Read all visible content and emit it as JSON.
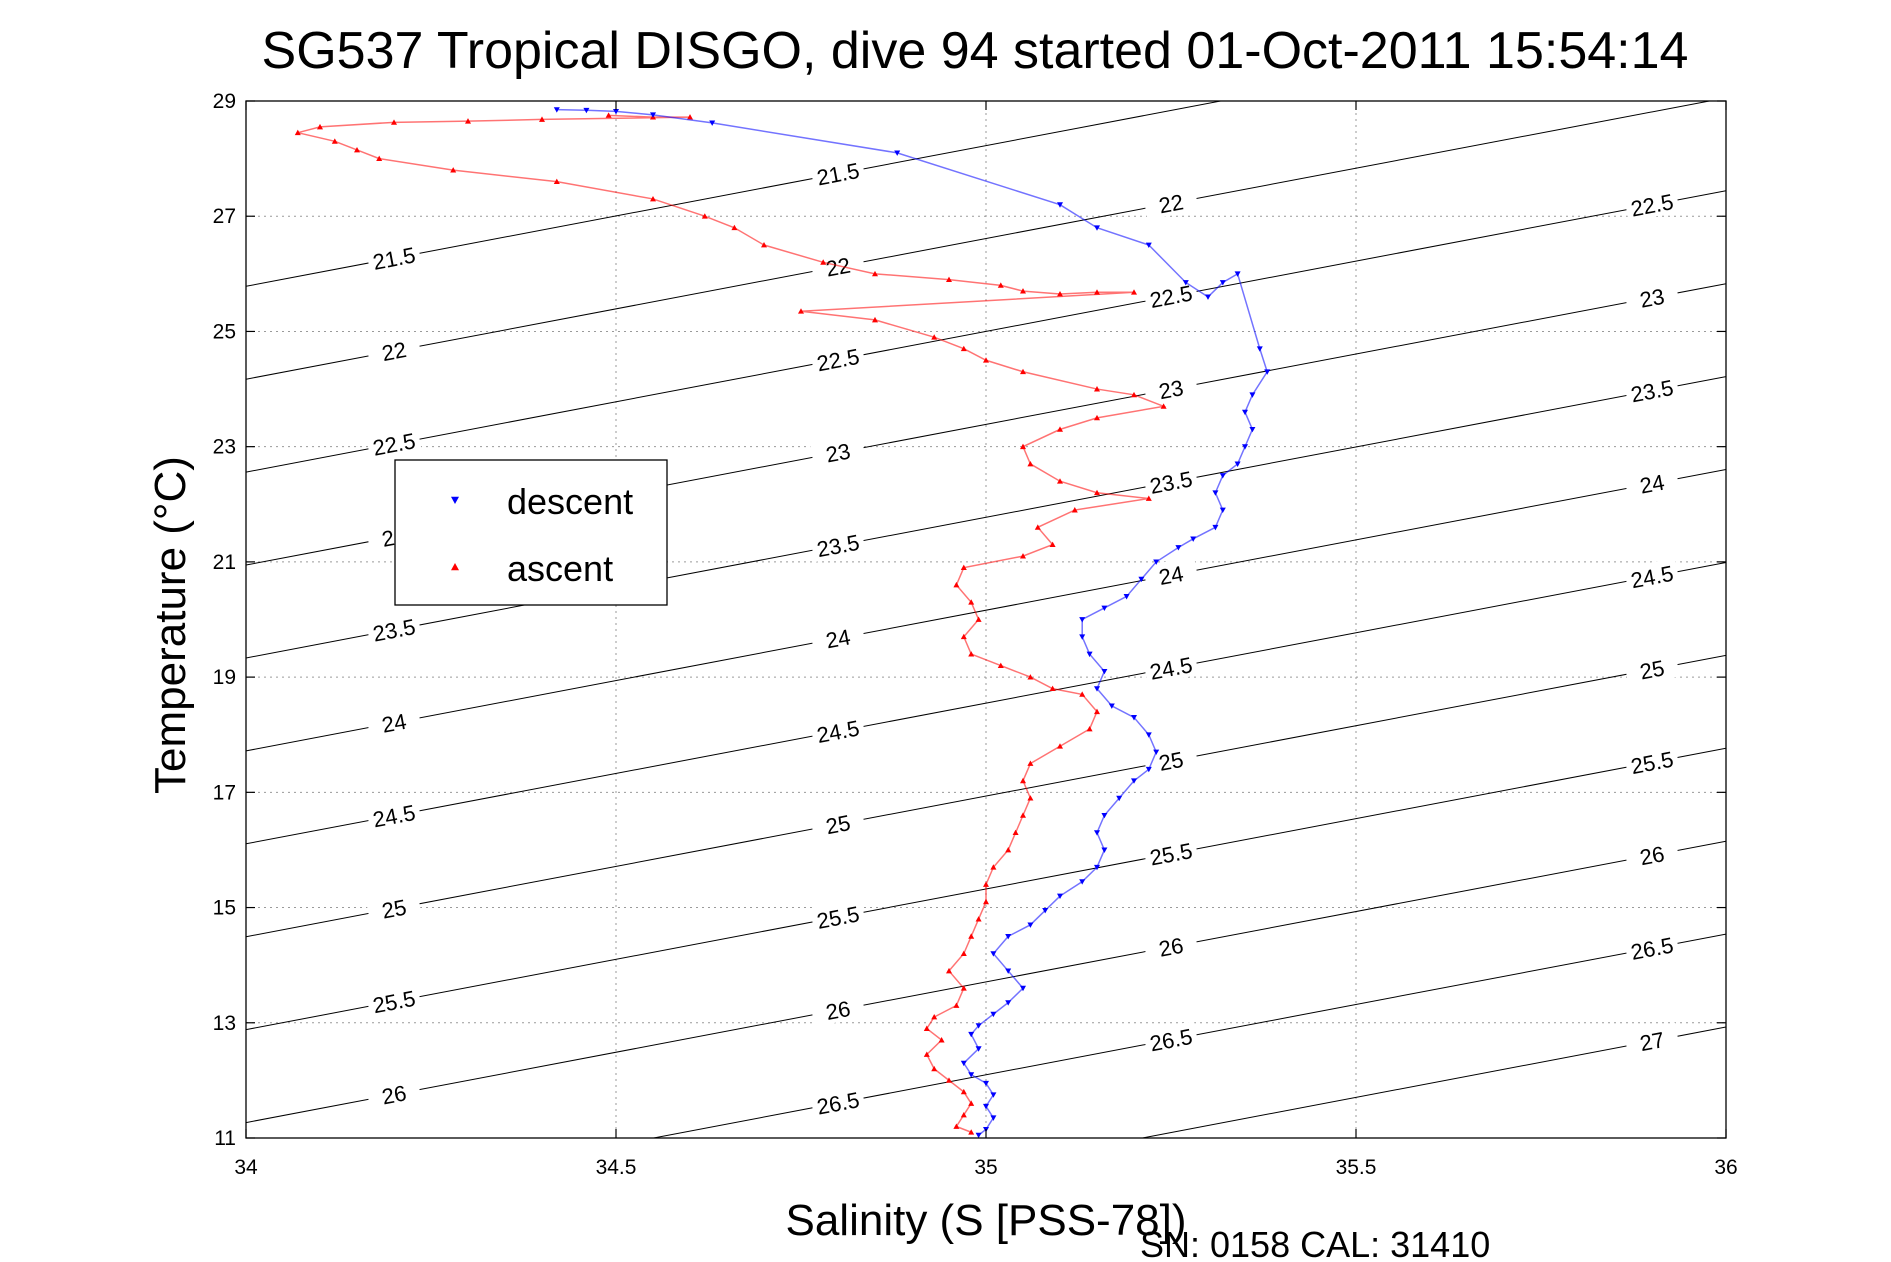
{
  "chart_data": {
    "type": "scatter",
    "title": "SG537 Tropical DISGO, dive 94 started 01-Oct-2011 15:54:14",
    "xlabel": "Salinity (S [PSS-78])",
    "ylabel": "Temperature (°C)",
    "xlim": [
      34,
      36
    ],
    "ylim": [
      11,
      29
    ],
    "xticks": [
      "34",
      "34.5",
      "35",
      "35.5",
      "36"
    ],
    "yticks": [
      "11",
      "13",
      "15",
      "17",
      "19",
      "21",
      "23",
      "25",
      "27",
      "29"
    ],
    "grid": true,
    "legend_position": "upper-left",
    "contour_levels": [
      "21.5",
      "22",
      "22.5",
      "23",
      "23.5",
      "24",
      "24.5",
      "25",
      "25.5",
      "26",
      "26.5",
      "27"
    ],
    "series": [
      {
        "name": "descent",
        "color": "#0000ff",
        "marker": "triangle-down",
        "points": [
          [
            34.42,
            28.85
          ],
          [
            34.46,
            28.84
          ],
          [
            34.5,
            28.82
          ],
          [
            34.55,
            28.76
          ],
          [
            34.63,
            28.62
          ],
          [
            34.88,
            28.1
          ],
          [
            35.1,
            27.2
          ],
          [
            35.15,
            26.8
          ],
          [
            35.22,
            26.5
          ],
          [
            35.27,
            25.85
          ],
          [
            35.3,
            25.6
          ],
          [
            35.32,
            25.85
          ],
          [
            35.34,
            26.0
          ],
          [
            35.37,
            24.7
          ],
          [
            35.38,
            24.3
          ],
          [
            35.36,
            23.9
          ],
          [
            35.35,
            23.6
          ],
          [
            35.36,
            23.3
          ],
          [
            35.35,
            23.0
          ],
          [
            35.34,
            22.7
          ],
          [
            35.32,
            22.5
          ],
          [
            35.31,
            22.2
          ],
          [
            35.32,
            21.9
          ],
          [
            35.31,
            21.6
          ],
          [
            35.28,
            21.4
          ],
          [
            35.26,
            21.25
          ],
          [
            35.23,
            21.0
          ],
          [
            35.21,
            20.7
          ],
          [
            35.19,
            20.4
          ],
          [
            35.16,
            20.2
          ],
          [
            35.13,
            20.0
          ],
          [
            35.13,
            19.7
          ],
          [
            35.14,
            19.4
          ],
          [
            35.16,
            19.1
          ],
          [
            35.15,
            18.8
          ],
          [
            35.17,
            18.5
          ],
          [
            35.2,
            18.3
          ],
          [
            35.22,
            18.0
          ],
          [
            35.23,
            17.7
          ],
          [
            35.22,
            17.4
          ],
          [
            35.2,
            17.2
          ],
          [
            35.18,
            16.9
          ],
          [
            35.16,
            16.6
          ],
          [
            35.15,
            16.3
          ],
          [
            35.16,
            16.0
          ],
          [
            35.15,
            15.7
          ],
          [
            35.13,
            15.45
          ],
          [
            35.1,
            15.2
          ],
          [
            35.08,
            14.95
          ],
          [
            35.06,
            14.7
          ],
          [
            35.03,
            14.5
          ],
          [
            35.01,
            14.2
          ],
          [
            35.03,
            13.9
          ],
          [
            35.05,
            13.6
          ],
          [
            35.03,
            13.35
          ],
          [
            35.01,
            13.15
          ],
          [
            34.99,
            12.95
          ],
          [
            34.98,
            12.8
          ],
          [
            34.99,
            12.55
          ],
          [
            34.97,
            12.3
          ],
          [
            34.98,
            12.1
          ],
          [
            35.0,
            11.95
          ],
          [
            35.01,
            11.75
          ],
          [
            35.0,
            11.55
          ],
          [
            35.01,
            11.35
          ],
          [
            35.0,
            11.15
          ],
          [
            34.99,
            11.05
          ]
        ]
      },
      {
        "name": "ascent",
        "color": "#ff0000",
        "marker": "triangle-up",
        "points": [
          [
            34.49,
            28.75
          ],
          [
            34.55,
            28.72
          ],
          [
            34.6,
            28.72
          ],
          [
            34.4,
            28.68
          ],
          [
            34.3,
            28.65
          ],
          [
            34.2,
            28.63
          ],
          [
            34.1,
            28.55
          ],
          [
            34.07,
            28.45
          ],
          [
            34.12,
            28.3
          ],
          [
            34.15,
            28.15
          ],
          [
            34.18,
            28.0
          ],
          [
            34.28,
            27.8
          ],
          [
            34.42,
            27.6
          ],
          [
            34.55,
            27.3
          ],
          [
            34.62,
            27.0
          ],
          [
            34.66,
            26.8
          ],
          [
            34.7,
            26.5
          ],
          [
            34.78,
            26.2
          ],
          [
            34.85,
            26.0
          ],
          [
            34.95,
            25.9
          ],
          [
            35.02,
            25.8
          ],
          [
            35.05,
            25.7
          ],
          [
            35.1,
            25.65
          ],
          [
            35.15,
            25.68
          ],
          [
            35.2,
            25.68
          ],
          [
            34.75,
            25.35
          ],
          [
            34.85,
            25.2
          ],
          [
            34.93,
            24.9
          ],
          [
            34.97,
            24.7
          ],
          [
            35.0,
            24.5
          ],
          [
            35.05,
            24.3
          ],
          [
            35.15,
            24.0
          ],
          [
            35.2,
            23.9
          ],
          [
            35.24,
            23.7
          ],
          [
            35.15,
            23.5
          ],
          [
            35.1,
            23.3
          ],
          [
            35.05,
            23.0
          ],
          [
            35.06,
            22.7
          ],
          [
            35.1,
            22.4
          ],
          [
            35.15,
            22.2
          ],
          [
            35.22,
            22.1
          ],
          [
            35.12,
            21.9
          ],
          [
            35.07,
            21.6
          ],
          [
            35.09,
            21.3
          ],
          [
            35.05,
            21.1
          ],
          [
            34.97,
            20.9
          ],
          [
            34.96,
            20.6
          ],
          [
            34.98,
            20.3
          ],
          [
            34.99,
            20.0
          ],
          [
            34.97,
            19.7
          ],
          [
            34.98,
            19.4
          ],
          [
            35.02,
            19.2
          ],
          [
            35.06,
            19.0
          ],
          [
            35.09,
            18.8
          ],
          [
            35.13,
            18.7
          ],
          [
            35.15,
            18.4
          ],
          [
            35.14,
            18.1
          ],
          [
            35.1,
            17.8
          ],
          [
            35.06,
            17.5
          ],
          [
            35.05,
            17.2
          ],
          [
            35.06,
            16.9
          ],
          [
            35.05,
            16.6
          ],
          [
            35.04,
            16.3
          ],
          [
            35.03,
            16.0
          ],
          [
            35.01,
            15.7
          ],
          [
            35.0,
            15.4
          ],
          [
            35.0,
            15.1
          ],
          [
            34.99,
            14.8
          ],
          [
            34.98,
            14.5
          ],
          [
            34.97,
            14.2
          ],
          [
            34.95,
            13.9
          ],
          [
            34.97,
            13.6
          ],
          [
            34.96,
            13.3
          ],
          [
            34.93,
            13.1
          ],
          [
            34.92,
            12.9
          ],
          [
            34.94,
            12.7
          ],
          [
            34.92,
            12.45
          ],
          [
            34.93,
            12.2
          ],
          [
            34.95,
            12.0
          ],
          [
            34.97,
            11.8
          ],
          [
            34.98,
            11.6
          ],
          [
            34.97,
            11.4
          ],
          [
            34.96,
            11.2
          ],
          [
            34.98,
            11.1
          ]
        ]
      }
    ]
  },
  "footer": {
    "sn_cal": "SN: 0158  CAL: 31410"
  }
}
